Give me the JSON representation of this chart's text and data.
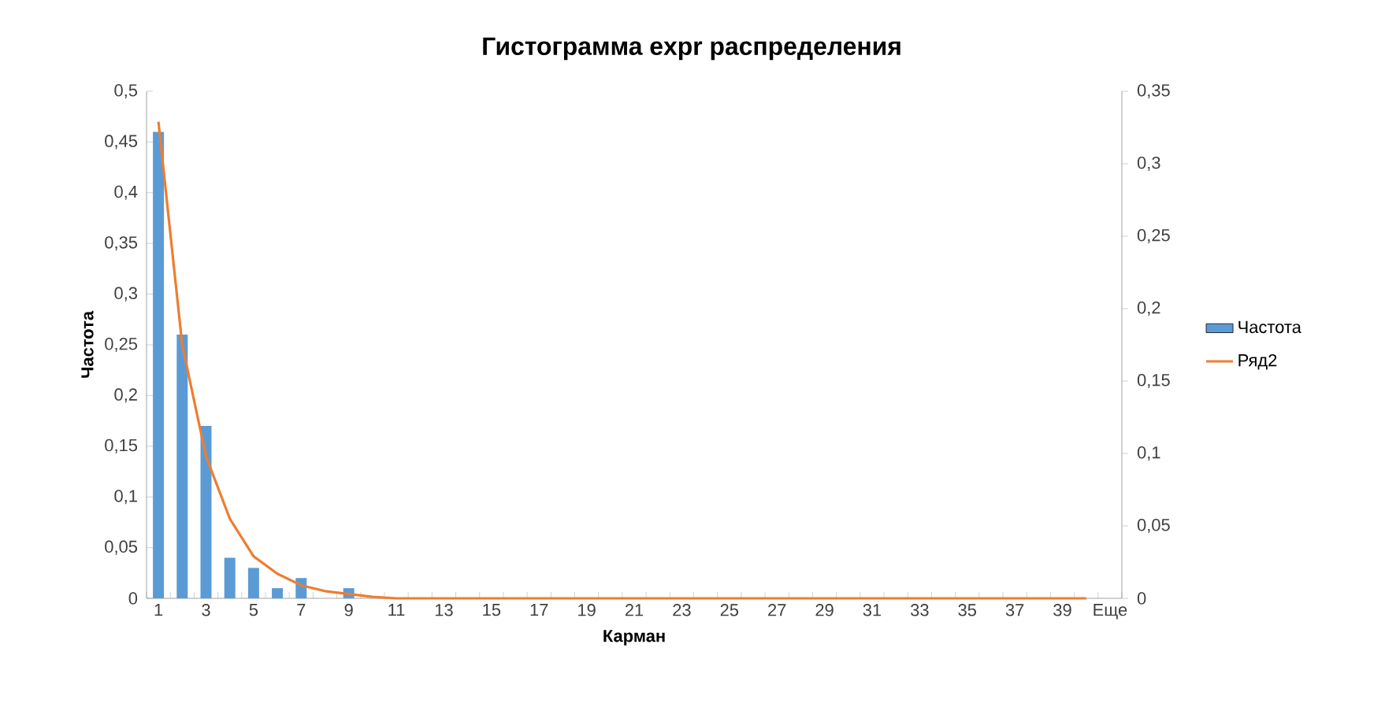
{
  "chart_data": {
    "type": "bar",
    "title": "Гистограмма expr распределения",
    "xlabel": "Карман",
    "ylabel": "Частота",
    "categories": [
      "1",
      null,
      "3",
      null,
      "5",
      null,
      "7",
      null,
      "9",
      null,
      "11",
      null,
      "13",
      null,
      "15",
      null,
      "17",
      null,
      "19",
      null,
      "21",
      null,
      "23",
      null,
      "25",
      null,
      "27",
      null,
      "29",
      null,
      "31",
      null,
      "33",
      null,
      "35",
      null,
      "37",
      null,
      "39",
      null,
      "Еще"
    ],
    "series": [
      {
        "name": "Частота",
        "color": "#5b9bd5",
        "values": [
          0.46,
          0.26,
          0.17,
          0.04,
          0.03,
          0.01,
          0.02,
          0,
          0.01,
          0,
          0,
          0,
          0,
          0,
          0,
          0,
          0,
          0,
          0,
          0,
          0,
          0,
          0,
          0,
          0,
          0,
          0,
          0,
          0,
          0,
          0,
          0,
          0,
          0,
          0,
          0,
          0,
          0,
          0,
          0,
          0
        ]
      },
      {
        "name": "Ряд2",
        "type": "line",
        "axis": "y2",
        "color": "#ed7d31",
        "values": [
          0.329,
          0.175,
          0.098,
          0.055,
          0.029,
          0.017,
          0.009,
          0.005,
          0.003,
          0.001,
          0,
          0,
          0,
          0,
          0,
          0,
          0,
          0,
          0,
          0,
          0,
          0,
          0,
          0,
          0,
          0,
          0,
          0,
          0,
          0,
          0,
          0,
          0,
          0,
          0,
          0,
          0,
          0,
          0,
          0,
          null
        ]
      }
    ],
    "ylim": [
      0,
      0.5
    ],
    "yticks": [
      0,
      {
        "value": 0.05,
        "label": "0,05"
      },
      {
        "value": 0.1,
        "label": "0,1"
      },
      {
        "value": 0.15,
        "label": "0,15"
      },
      {
        "value": 0.2,
        "label": "0,2"
      },
      {
        "value": 0.25,
        "label": "0,25"
      },
      {
        "value": 0.3,
        "label": "0,3"
      },
      {
        "value": 0.35,
        "label": "0,35"
      },
      {
        "value": 0.4,
        "label": "0,4"
      },
      {
        "value": 0.45,
        "label": "0,45"
      },
      {
        "value": 0.5,
        "label": "0,5"
      }
    ],
    "y2lim": [
      0,
      0.35
    ],
    "y2ticks": [
      0,
      {
        "value": 0.05,
        "label": "0,05"
      },
      {
        "value": 0.1,
        "label": "0,1"
      },
      {
        "value": 0.15,
        "label": "0,15"
      },
      {
        "value": 0.2,
        "label": "0,2"
      },
      {
        "value": 0.25,
        "label": "0,25"
      },
      {
        "value": 0.3,
        "label": "0,3"
      },
      {
        "value": 0.35,
        "label": "0,35"
      }
    ],
    "legend": "right",
    "grid": false
  }
}
